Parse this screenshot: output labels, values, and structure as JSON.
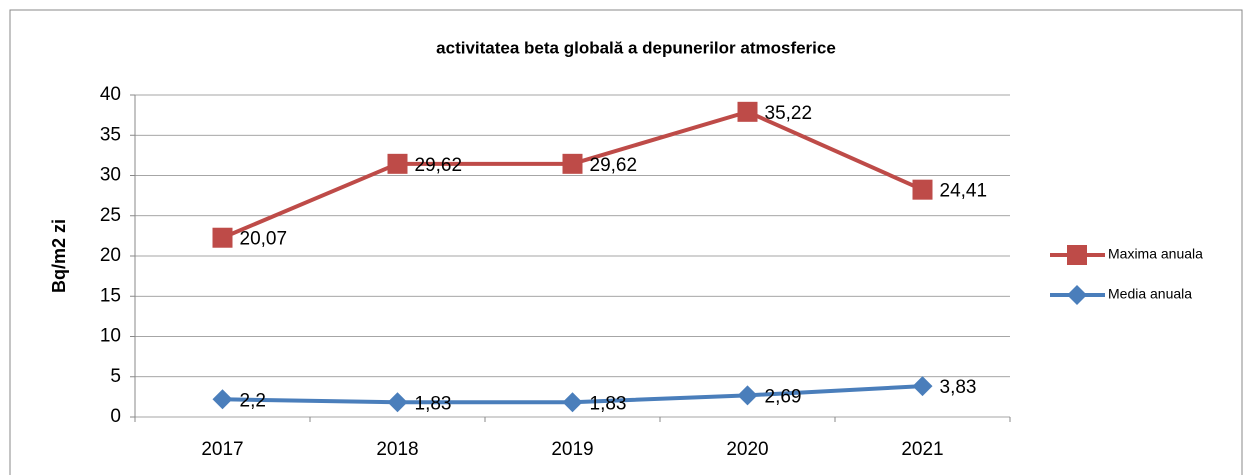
{
  "chart_data": {
    "type": "line",
    "stacked": true,
    "title": "activitatea beta globală a depunerilor atmosferice",
    "y_label": "Bq/m2  zi",
    "categories": [
      "2017",
      "2018",
      "2019",
      "2020",
      "2021"
    ],
    "series": [
      {
        "name": "Media anuala",
        "color": "#4a7ebb",
        "marker": "diamond",
        "values": [
          2.2,
          1.83,
          1.83,
          2.69,
          3.83
        ],
        "value_labels": [
          "2,2",
          "1,83",
          "1,83",
          "2,69",
          "3,83"
        ]
      },
      {
        "name": "Maxima anuala",
        "color": "#be4b48",
        "marker": "square",
        "values": [
          20.07,
          29.62,
          29.62,
          35.22,
          24.41
        ],
        "value_labels": [
          "20,07",
          "29,62",
          "29,62",
          "35,22",
          "24,41"
        ]
      }
    ],
    "ylim": [
      0,
      40
    ],
    "yticks": [
      0,
      5,
      10,
      15,
      20,
      25,
      30,
      35,
      40
    ],
    "grid": true,
    "legend": "right"
  }
}
